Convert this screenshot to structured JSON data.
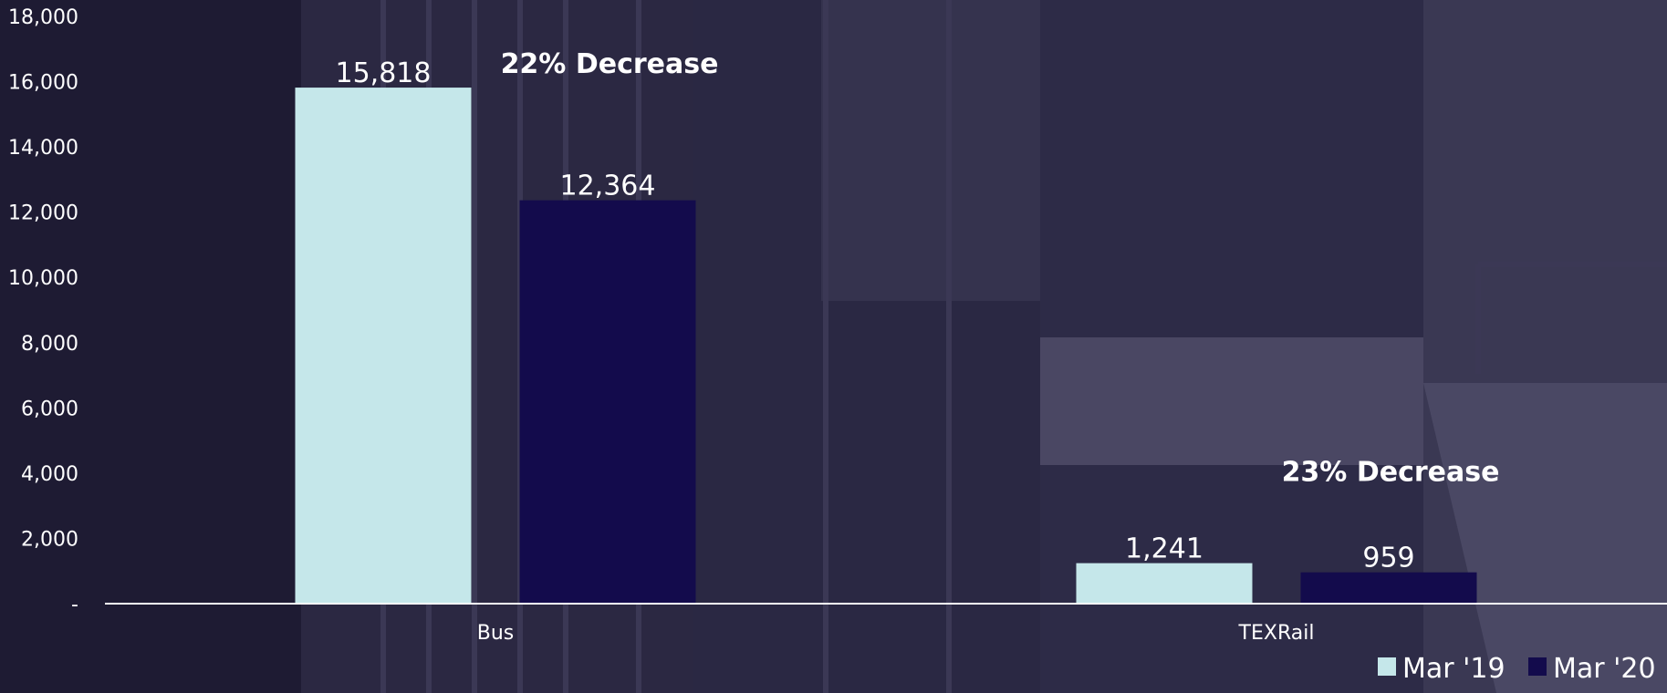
{
  "chart_data": {
    "type": "bar",
    "categories": [
      "Bus",
      "TEXRail"
    ],
    "series": [
      {
        "name": "Mar '19",
        "values": [
          15818,
          1241
        ],
        "labels": [
          "15,818",
          "1,241"
        ],
        "color": "#c5e7ea"
      },
      {
        "name": "Mar '20",
        "values": [
          12364,
          959
        ],
        "labels": [
          "12,364",
          "959"
        ],
        "color": "#130b4c"
      }
    ],
    "ylim": [
      0,
      18000
    ],
    "yticks": [
      0,
      2000,
      4000,
      6000,
      8000,
      10000,
      12000,
      14000,
      16000,
      18000
    ],
    "ytick_labels": [
      "-",
      "2,000",
      "4,000",
      "6,000",
      "8,000",
      "10,000",
      "12,000",
      "14,000",
      "16,000",
      "18,000"
    ],
    "annotations": [
      {
        "text": "22% Decrease",
        "category": "Bus"
      },
      {
        "text": "23% Decrease",
        "category": "TEXRail"
      }
    ],
    "legend_position": "bottom-right",
    "grid": false
  },
  "colors": {
    "background": "#23203a",
    "axis": "#ffffff",
    "text": "#ffffff"
  }
}
